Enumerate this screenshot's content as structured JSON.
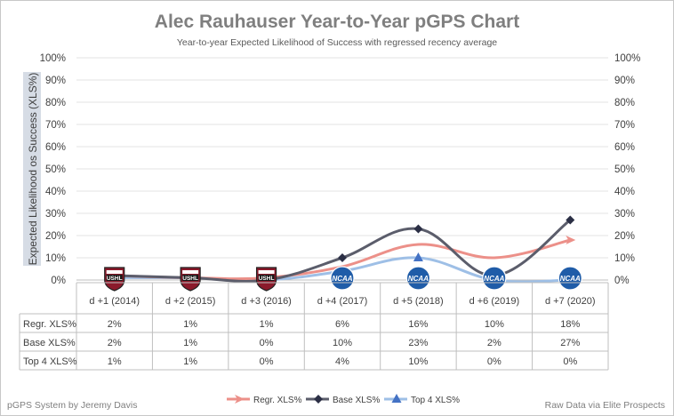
{
  "chart_data": {
    "type": "line",
    "title": "Alec Rauhauser Year-to-Year pGPS Chart",
    "subtitle": "Year-to-year Expected Likelihood of Success with regressed recency average",
    "ylabel": "Expected Likelihood os Success (XLS%)",
    "xlabel": "",
    "ylim": [
      0,
      100
    ],
    "yticks": [
      "0%",
      "10%",
      "20%",
      "30%",
      "40%",
      "50%",
      "60%",
      "70%",
      "80%",
      "90%",
      "100%"
    ],
    "categories": [
      "d +1 (2014)",
      "d +2 (2015)",
      "d +3 (2016)",
      "d +4 (2017)",
      "d +5 (2018)",
      "d +6 (2019)",
      "d +7 (2020)"
    ],
    "league_logos": [
      "USHL",
      "USHL",
      "USHL",
      "NCAA",
      "NCAA",
      "NCAA",
      "NCAA"
    ],
    "series": [
      {
        "name": "Regr. XLS%",
        "values": [
          2,
          1,
          1,
          6,
          16,
          10,
          18
        ],
        "labels": [
          "2%",
          "1%",
          "1%",
          "6%",
          "16%",
          "10%",
          "18%"
        ],
        "color": "#ec9089",
        "marker": "arrow"
      },
      {
        "name": "Base XLS%",
        "values": [
          2,
          1,
          0,
          10,
          23,
          2,
          27
        ],
        "labels": [
          "2%",
          "1%",
          "0%",
          "10%",
          "23%",
          "2%",
          "27%"
        ],
        "color": "#5b5d6b",
        "marker": "diamond"
      },
      {
        "name": "Top 4 XLS%",
        "values": [
          1,
          1,
          0,
          4,
          10,
          0,
          0
        ],
        "labels": [
          "1%",
          "1%",
          "0%",
          "4%",
          "10%",
          "0%",
          "0%"
        ],
        "color": "#9ebfe6",
        "marker": "triangle"
      }
    ],
    "grid": true,
    "legend": "bottom"
  },
  "footer": {
    "left": "pGPS System by Jeremy Davis",
    "right": "Raw Data via Elite Prospects"
  }
}
